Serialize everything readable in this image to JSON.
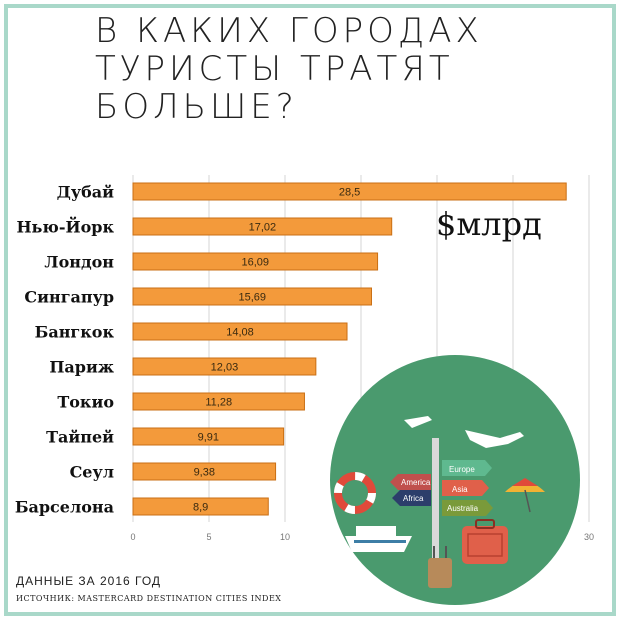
{
  "title_lines": [
    "В КАКИХ ГОРОДАХ",
    "ТУРИСТЫ ТРАТЯТ",
    "БОЛЬШЕ?"
  ],
  "unit_label": "$млрд",
  "footer": {
    "period": "ДАННЫЕ ЗА 2016 ГОД",
    "source": "ИСТОЧНИК: MASTERCARD DESTINATION CITIES INDEX"
  },
  "colors": {
    "bar": "#f39a3b",
    "bar_edge": "#c96f14",
    "grid": "#d6d6d6",
    "frame": "#a9d8c9"
  },
  "illustration": {
    "signs": [
      "Europe",
      "America",
      "Asia",
      "Africa",
      "Australia"
    ]
  },
  "chart_data": {
    "type": "bar",
    "orientation": "horizontal",
    "categories": [
      "Дубай",
      "Нью-Йорк",
      "Лондон",
      "Сингапур",
      "Бангкок",
      "Париж",
      "Токио",
      "Тайпей",
      "Сеул",
      "Барселона"
    ],
    "values": [
      28.5,
      17.02,
      16.09,
      15.69,
      14.08,
      12.03,
      11.28,
      9.91,
      9.38,
      8.9
    ],
    "data_labels": [
      "28,5",
      "17,02",
      "16,09",
      "15,69",
      "14,08",
      "12,03",
      "11,28",
      "9,91",
      "9,38",
      "8,9"
    ],
    "xlim": [
      0,
      30
    ],
    "xticks": [
      0,
      5,
      10,
      15,
      20,
      25,
      30
    ],
    "xtick_labels": [
      "0",
      "5",
      "10",
      "",
      "",
      "",
      "30"
    ],
    "grid": true,
    "legend": false
  }
}
